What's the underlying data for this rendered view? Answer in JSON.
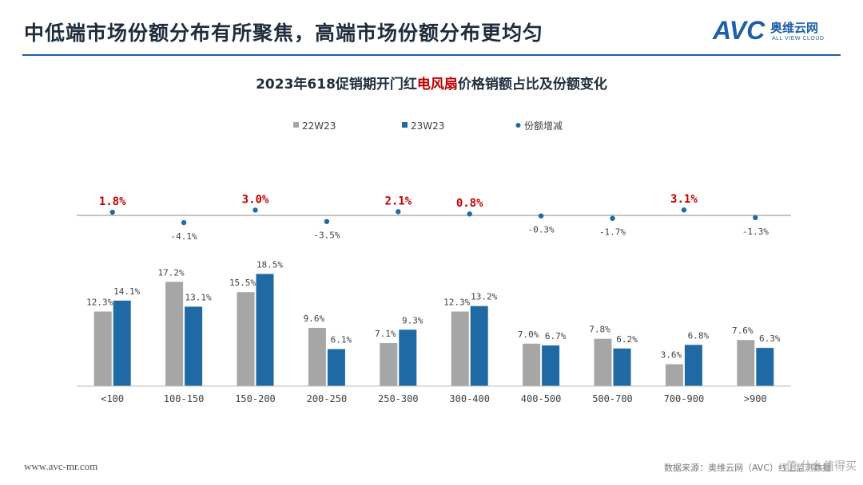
{
  "header": {
    "title": "中低端市场份额分布有所聚焦，高端市场份额分布更均匀",
    "logo_avc": "AVC",
    "logo_cn": "奥维云网",
    "logo_en": "ALL VIEW CLOUD",
    "accent_color": "#1f5fa6"
  },
  "chart_data": {
    "type": "bar",
    "title_parts": [
      "2023年618促销期开门红",
      "电风扇",
      "价格销额占比及份额变化"
    ],
    "title_highlight_color": "#c00000",
    "categories": [
      "<100",
      "100-150",
      "150-200",
      "200-250",
      "250-300",
      "300-400",
      "400-500",
      "500-700",
      "700-900",
      ">900"
    ],
    "series": [
      {
        "name": "22W23",
        "values": [
          12.3,
          17.2,
          15.5,
          9.6,
          7.1,
          12.3,
          7.0,
          7.8,
          3.6,
          7.6
        ],
        "labels": [
          "12.3%",
          "17.2%",
          "15.5%",
          "9.6%",
          "7.1%",
          "12.3%",
          "7.0%",
          "7.8%",
          "3.6%",
          "7.6%"
        ],
        "color": "#a6a6a6"
      },
      {
        "name": "23W23",
        "values": [
          14.1,
          13.1,
          18.5,
          6.1,
          9.3,
          13.2,
          6.7,
          6.2,
          6.8,
          6.3
        ],
        "labels": [
          "14.1%",
          "13.1%",
          "18.5%",
          "6.1%",
          "9.3%",
          "13.2%",
          "6.7%",
          "6.2%",
          "6.8%",
          "6.3%"
        ],
        "color": "#1f6aa5"
      }
    ],
    "share_change": {
      "name": "份额增减",
      "values": [
        1.8,
        -4.1,
        3.0,
        -3.5,
        2.1,
        0.8,
        -0.3,
        -1.7,
        3.1,
        -1.3
      ],
      "labels": [
        "1.8%",
        "-4.1%",
        "3.0%",
        "-3.5%",
        "2.1%",
        "0.8%",
        "-0.3%",
        "-1.7%",
        "3.1%",
        "-1.3%"
      ],
      "color": "#1f6aa5",
      "positive_label_color": "#c00000",
      "negative_label_color": "#404040"
    },
    "legend_position": "top-left",
    "grid": false
  },
  "footer": {
    "url": "www.avc-mr.com",
    "source": "数据来源：奥维云网（AVC）线上监测数据",
    "watermark": "值 什么值得买"
  }
}
